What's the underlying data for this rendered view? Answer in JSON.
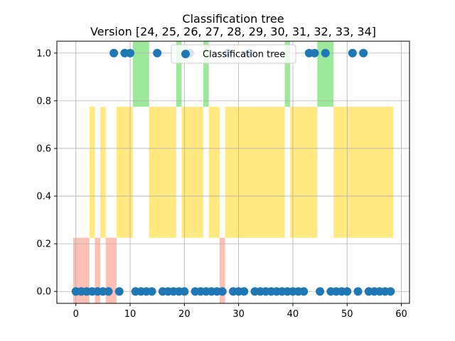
{
  "chart_data": {
    "type": "scatter",
    "title": "Classification tree",
    "subtitle": "Version [24, 25, 26, 27, 28, 29, 30, 31, 32, 33, 34]",
    "xlabel": "",
    "ylabel": "",
    "xlim": [
      -3.5,
      61.5
    ],
    "ylim": [
      -0.05,
      1.05
    ],
    "xticks": [
      0,
      10,
      20,
      30,
      40,
      50,
      60
    ],
    "yticks": [
      0.0,
      0.2,
      0.4,
      0.6,
      0.8,
      1.0
    ],
    "xtick_labels": [
      "0",
      "10",
      "20",
      "30",
      "40",
      "50",
      "60"
    ],
    "ytick_labels": [
      "0.0",
      "0.2",
      "0.4",
      "0.6",
      "0.8",
      "1.0"
    ],
    "grid": true,
    "legend": {
      "entries": [
        "Classification tree"
      ],
      "placement": "top-center"
    },
    "series": [
      {
        "name": "Classification tree",
        "color": "#1f77b4",
        "points": [
          {
            "x": 0,
            "y": 0
          },
          {
            "x": 1,
            "y": 0
          },
          {
            "x": 2,
            "y": 0
          },
          {
            "x": 3,
            "y": 0
          },
          {
            "x": 4,
            "y": 0
          },
          {
            "x": 5,
            "y": 0
          },
          {
            "x": 6,
            "y": 0
          },
          {
            "x": 7,
            "y": 1
          },
          {
            "x": 8,
            "y": 0
          },
          {
            "x": 9,
            "y": 1
          },
          {
            "x": 10,
            "y": 1
          },
          {
            "x": 11,
            "y": 0
          },
          {
            "x": 12,
            "y": 0
          },
          {
            "x": 13,
            "y": 0
          },
          {
            "x": 14,
            "y": 0
          },
          {
            "x": 15,
            "y": 1
          },
          {
            "x": 16,
            "y": 0
          },
          {
            "x": 17,
            "y": 0
          },
          {
            "x": 18,
            "y": 0
          },
          {
            "x": 19,
            "y": 0
          },
          {
            "x": 20,
            "y": 0
          },
          {
            "x": 21,
            "y": 1
          },
          {
            "x": 22,
            "y": 0
          },
          {
            "x": 23,
            "y": 0
          },
          {
            "x": 24,
            "y": 0
          },
          {
            "x": 25,
            "y": 0
          },
          {
            "x": 26,
            "y": 0
          },
          {
            "x": 27,
            "y": 0
          },
          {
            "x": 28,
            "y": 1
          },
          {
            "x": 29,
            "y": 0
          },
          {
            "x": 30,
            "y": 0
          },
          {
            "x": 31,
            "y": 0
          },
          {
            "x": 32,
            "y": 1
          },
          {
            "x": 33,
            "y": 0
          },
          {
            "x": 34,
            "y": 0
          },
          {
            "x": 35,
            "y": 0
          },
          {
            "x": 36,
            "y": 0
          },
          {
            "x": 37,
            "y": 0
          },
          {
            "x": 38,
            "y": 0
          },
          {
            "x": 39,
            "y": 0
          },
          {
            "x": 40,
            "y": 0
          },
          {
            "x": 41,
            "y": 0
          },
          {
            "x": 42,
            "y": 0
          },
          {
            "x": 43,
            "y": 1
          },
          {
            "x": 44,
            "y": 1
          },
          {
            "x": 45,
            "y": 0
          },
          {
            "x": 46,
            "y": 1
          },
          {
            "x": 47,
            "y": 0
          },
          {
            "x": 48,
            "y": 0
          },
          {
            "x": 49,
            "y": 0
          },
          {
            "x": 50,
            "y": 0
          },
          {
            "x": 51,
            "y": 1
          },
          {
            "x": 52,
            "y": 0
          },
          {
            "x": 53,
            "y": 1
          },
          {
            "x": 54,
            "y": 0
          },
          {
            "x": 55,
            "y": 0
          },
          {
            "x": 56,
            "y": 0
          },
          {
            "x": 57,
            "y": 0
          },
          {
            "x": 58,
            "y": 0
          }
        ]
      }
    ],
    "bands": [
      {
        "color": "#ffbfb5",
        "y_range": [
          -0.05,
          0.225
        ],
        "x_spans": [
          [
            -0.5,
            2.5
          ],
          [
            3.5,
            4.5
          ],
          [
            5.5,
            7.5
          ],
          [
            26.5,
            27.5
          ]
        ]
      },
      {
        "color": "#ffe980",
        "y_range": [
          0.225,
          0.775
        ],
        "x_spans": [
          [
            2.5,
            3.5
          ],
          [
            4.5,
            5.5
          ],
          [
            7.5,
            10.5
          ],
          [
            13.5,
            18.5
          ],
          [
            19.5,
            23.5
          ],
          [
            24.5,
            26.5
          ],
          [
            27.5,
            38.5
          ],
          [
            39.5,
            44.5
          ],
          [
            47.5,
            58.5
          ]
        ]
      },
      {
        "color": "#9de89a",
        "y_range": [
          0.775,
          1.05
        ],
        "x_spans": [
          [
            10.5,
            13.5
          ],
          [
            18.5,
            19.5
          ],
          [
            23.5,
            24.5
          ],
          [
            38.5,
            39.5
          ],
          [
            44.5,
            47.5
          ]
        ]
      }
    ]
  }
}
